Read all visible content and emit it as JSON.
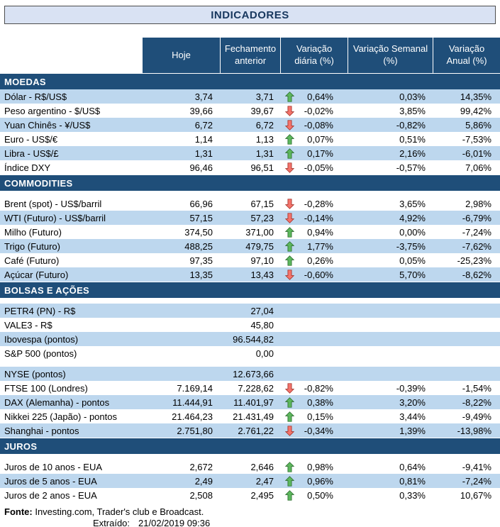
{
  "title": "INDICADORES",
  "columns": [
    "Hoje",
    "Fechamento anterior",
    "Variação diária (%)",
    "Variação Semanal (%)",
    "Variação Anual (%)"
  ],
  "colors": {
    "header_navy": "#1F4E79",
    "stripe_blue": "#BDD7EE",
    "title_bg": "#D9E2F3",
    "arrow_up_fill": "#5DB75D",
    "arrow_up_stroke": "#2E7031",
    "arrow_down_fill": "#F4736B",
    "arrow_down_stroke": "#A5352C"
  },
  "sections": [
    {
      "id": "moedas",
      "name": "MOEDAS",
      "first_shade": "blue",
      "gap_after_header": false,
      "rows": [
        {
          "label": "Dólar - R$/US$",
          "hoje": "3,74",
          "fechamento": "3,71",
          "arrow": "up",
          "diaria": "0,64%",
          "semanal": "0,03%",
          "anual": "14,35%"
        },
        {
          "label": "Peso argentino - $/US$",
          "hoje": "39,66",
          "fechamento": "39,67",
          "arrow": "down",
          "diaria": "-0,02%",
          "semanal": "3,85%",
          "anual": "99,42%"
        },
        {
          "label": "Yuan Chinês - ¥/US$",
          "hoje": "6,72",
          "fechamento": "6,72",
          "arrow": "down",
          "diaria": "-0,08%",
          "semanal": "-0,82%",
          "anual": "5,86%"
        },
        {
          "label": "Euro - US$/€",
          "hoje": "1,14",
          "fechamento": "1,13",
          "arrow": "up",
          "diaria": "0,07%",
          "semanal": "0,51%",
          "anual": "-7,53%"
        },
        {
          "label": "Libra - US$/£",
          "hoje": "1,31",
          "fechamento": "1,31",
          "arrow": "up",
          "diaria": "0,17%",
          "semanal": "2,16%",
          "anual": "-6,01%"
        },
        {
          "label": "Índice DXY",
          "hoje": "96,46",
          "fechamento": "96,51",
          "arrow": "down",
          "diaria": "-0,05%",
          "semanal": "-0,57%",
          "anual": "7,06%"
        }
      ]
    },
    {
      "id": "commodities",
      "name": "COMMODITIES",
      "first_shade": "white",
      "gap_after_header": true,
      "rows": [
        {
          "label": "Brent (spot) - US$/barril",
          "hoje": "66,96",
          "fechamento": "67,15",
          "arrow": "down",
          "diaria": "-0,28%",
          "semanal": "3,65%",
          "anual": "2,98%"
        },
        {
          "label": "WTI (Futuro) - US$/barril",
          "hoje": "57,15",
          "fechamento": "57,23",
          "arrow": "down",
          "diaria": "-0,14%",
          "semanal": "4,92%",
          "anual": "-6,79%"
        },
        {
          "label": "Milho (Futuro)",
          "hoje": "374,50",
          "fechamento": "371,00",
          "arrow": "up",
          "diaria": "0,94%",
          "semanal": "0,00%",
          "anual": "-7,24%"
        },
        {
          "label": "Trigo (Futuro)",
          "hoje": "488,25",
          "fechamento": "479,75",
          "arrow": "up",
          "diaria": "1,77%",
          "semanal": "-3,75%",
          "anual": "-7,62%"
        },
        {
          "label": "Café (Futuro)",
          "hoje": "97,35",
          "fechamento": "97,10",
          "arrow": "up",
          "diaria": "0,26%",
          "semanal": "0,05%",
          "anual": "-25,23%"
        },
        {
          "label": "Açúcar (Futuro)",
          "hoje": "13,35",
          "fechamento": "13,43",
          "arrow": "down",
          "diaria": "-0,60%",
          "semanal": "5,70%",
          "anual": "-8,62%"
        }
      ]
    },
    {
      "id": "bolsas-e-acoes",
      "name": "BOLSAS E AÇÕES",
      "first_shade": "blue",
      "gap_after_header": true,
      "rows": [
        {
          "label": "PETR4 (PN) - R$",
          "hoje": "",
          "fechamento": "27,04",
          "arrow": "",
          "diaria": "",
          "semanal": "",
          "anual": ""
        },
        {
          "label": "VALE3 - R$",
          "hoje": "",
          "fechamento": "45,80",
          "arrow": "",
          "diaria": "",
          "semanal": "",
          "anual": ""
        },
        {
          "label": "Ibovespa (pontos)",
          "hoje": "",
          "fechamento": "96.544,82",
          "arrow": "",
          "diaria": "",
          "semanal": "",
          "anual": ""
        },
        {
          "label": "S&P 500 (pontos)",
          "hoje": "",
          "fechamento": "0,00",
          "arrow": "",
          "diaria": "",
          "semanal": "",
          "anual": ""
        },
        {
          "spacer": true
        },
        {
          "label": "NYSE (pontos)",
          "hoje": "",
          "fechamento": "12.673,66",
          "arrow": "",
          "diaria": "",
          "semanal": "",
          "anual": ""
        },
        {
          "label": "FTSE 100 (Londres)",
          "hoje": "7.169,14",
          "fechamento": "7.228,62",
          "arrow": "down",
          "diaria": "-0,82%",
          "semanal": "-0,39%",
          "anual": "-1,54%"
        },
        {
          "label": "DAX (Alemanha) - pontos",
          "hoje": "11.444,91",
          "fechamento": "11.401,97",
          "arrow": "up",
          "diaria": "0,38%",
          "semanal": "3,20%",
          "anual": "-8,22%"
        },
        {
          "label": "Nikkei 225 (Japão) - pontos",
          "hoje": "21.464,23",
          "fechamento": "21.431,49",
          "arrow": "up",
          "diaria": "0,15%",
          "semanal": "3,44%",
          "anual": "-9,49%"
        },
        {
          "label": "Shanghai - pontos",
          "hoje": "2.751,80",
          "fechamento": "2.761,22",
          "arrow": "down",
          "diaria": "-0,34%",
          "semanal": "1,39%",
          "anual": "-13,98%"
        }
      ]
    },
    {
      "id": "juros",
      "name": "JUROS",
      "first_shade": "white",
      "gap_after_header": true,
      "rows": [
        {
          "label": "Juros de 10 anos - EUA",
          "hoje": "2,672",
          "fechamento": "2,646",
          "arrow": "up",
          "diaria": "0,98%",
          "semanal": "0,64%",
          "anual": "-9,41%"
        },
        {
          "label": "Juros de 5 anos - EUA",
          "hoje": "2,49",
          "fechamento": "2,47",
          "arrow": "up",
          "diaria": "0,96%",
          "semanal": "0,81%",
          "anual": "-7,24%"
        },
        {
          "label": "Juros de 2 anos - EUA",
          "hoje": "2,508",
          "fechamento": "2,495",
          "arrow": "up",
          "diaria": "0,50%",
          "semanal": "0,33%",
          "anual": "10,67%"
        }
      ]
    }
  ],
  "footer": {
    "fonte_label": "Fonte:",
    "fonte_text": " Investing.com, Trader's club e Broadcast.",
    "extraido_label": "Extraído:",
    "extraido_value": "21/02/2019 09:36"
  }
}
